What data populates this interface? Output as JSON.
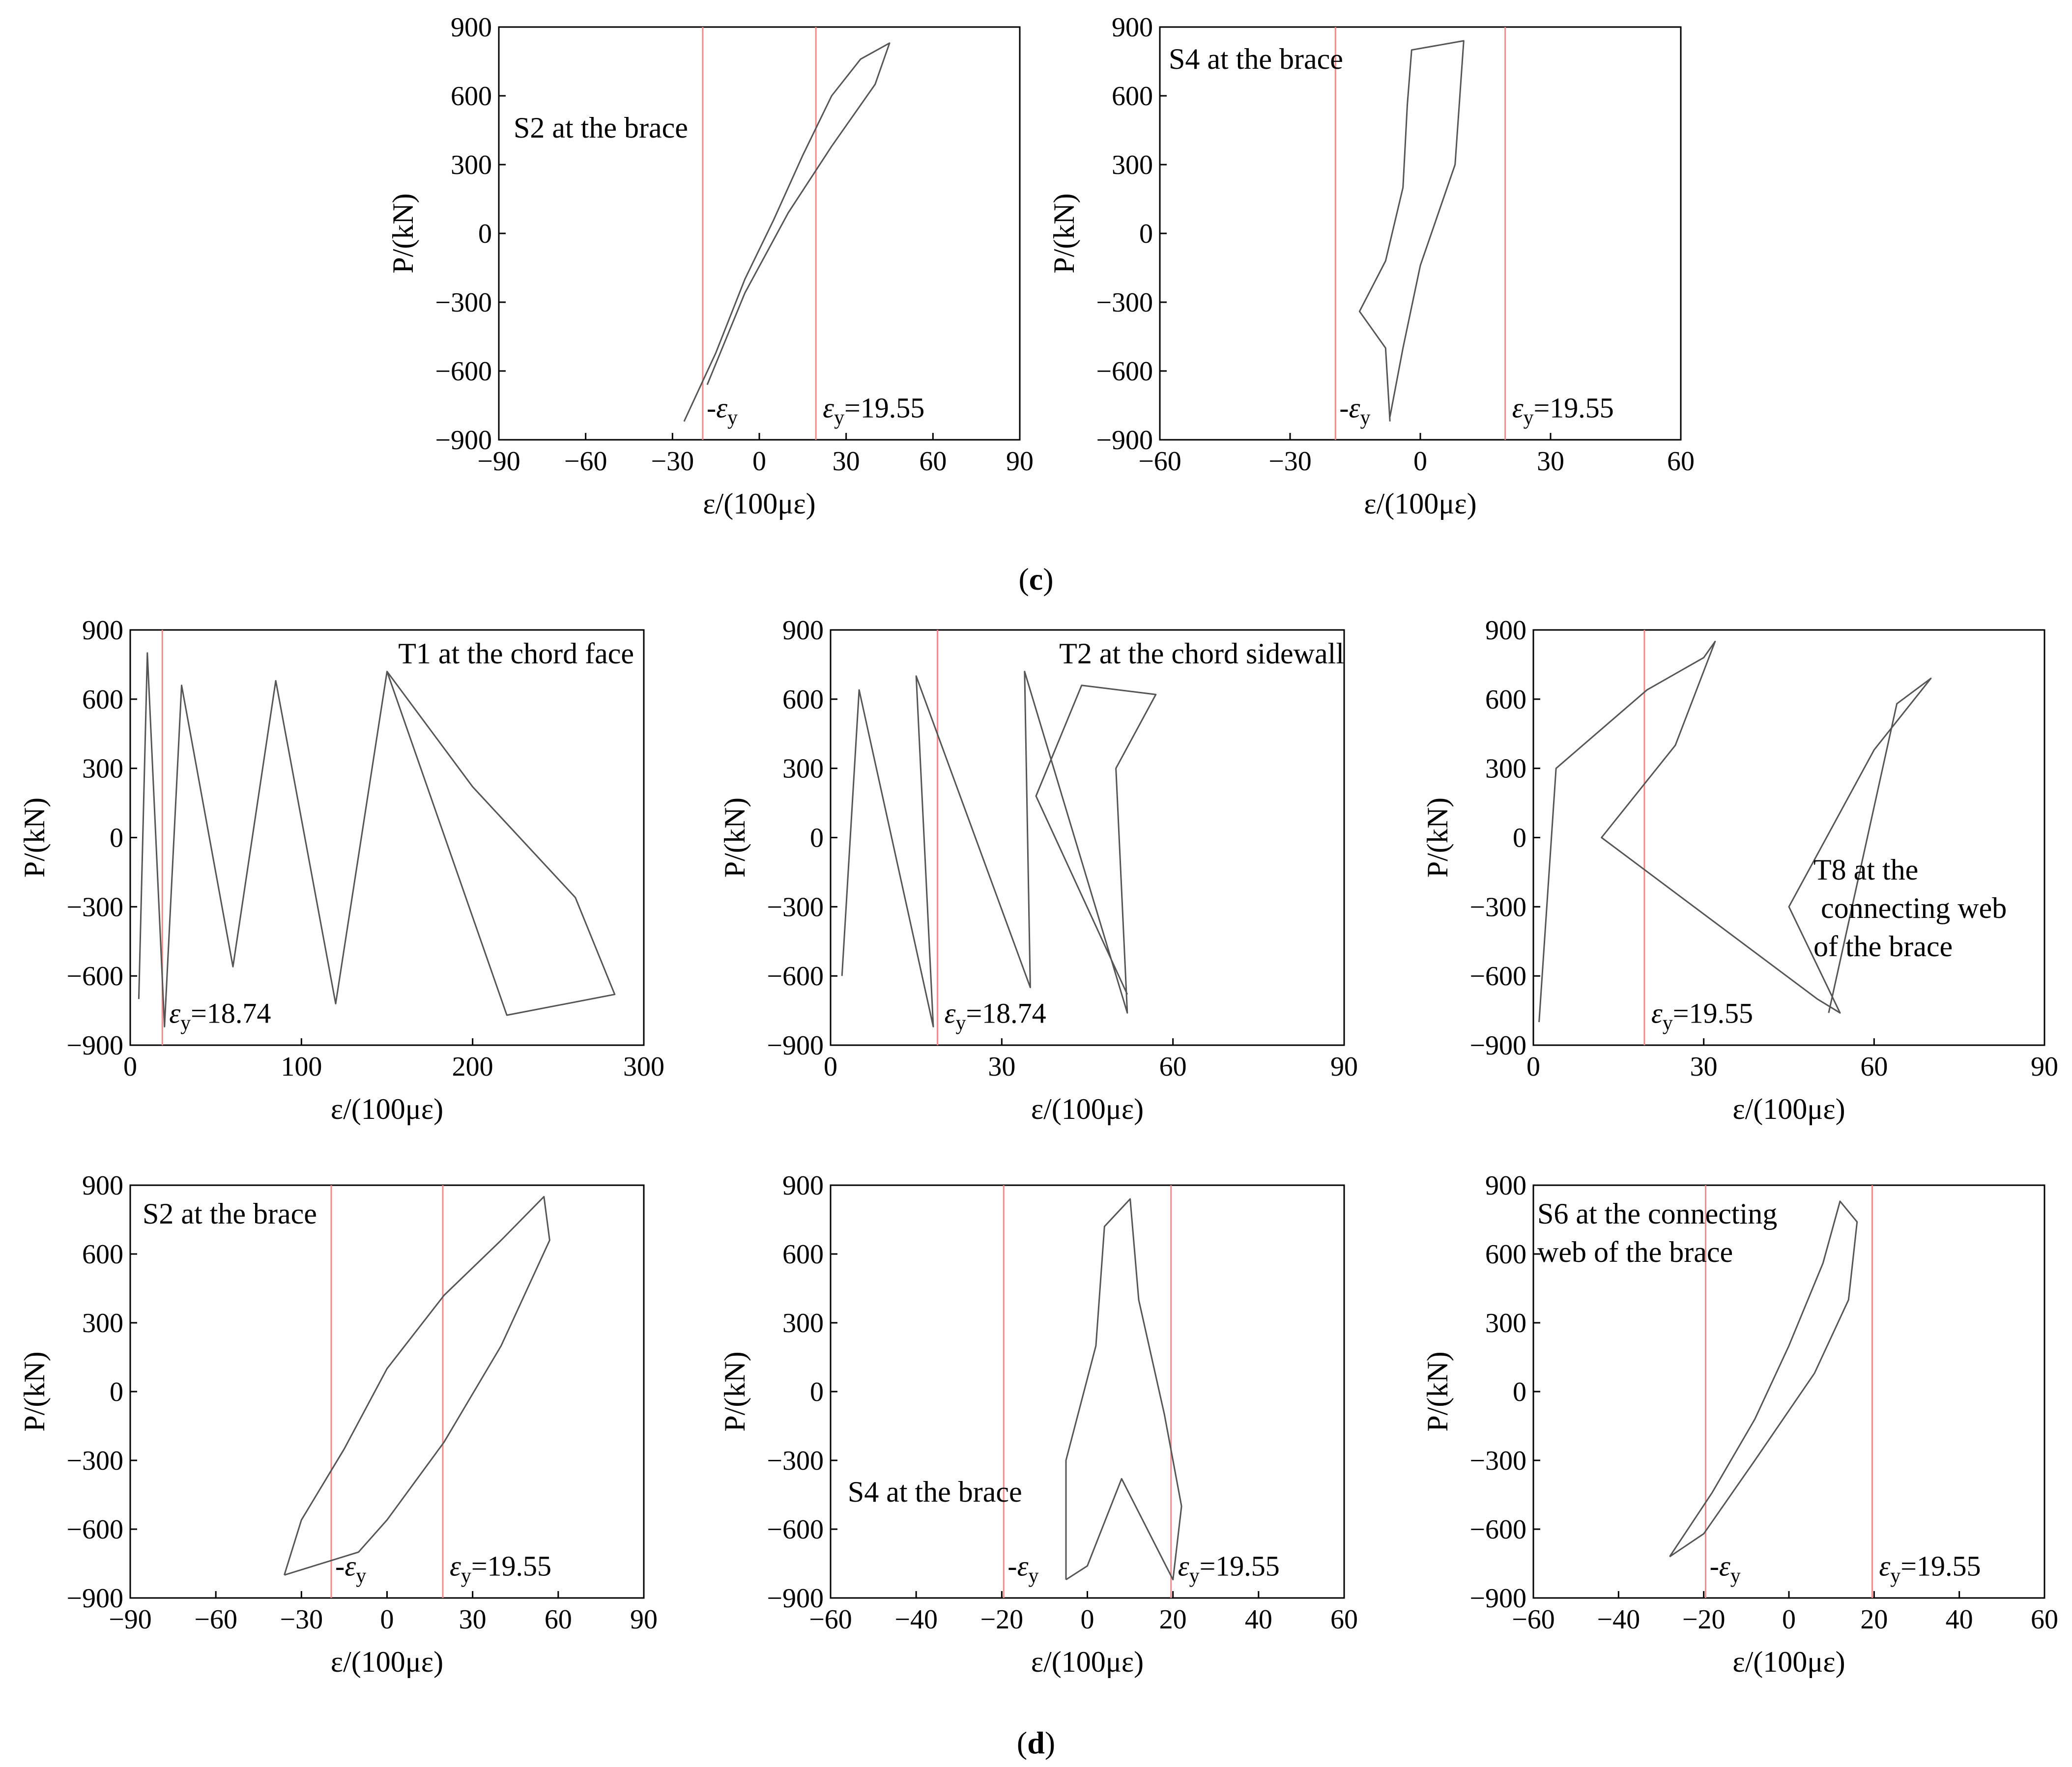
{
  "figure": {
    "sub_labels": {
      "c": {
        "open": "(",
        "letter": "c",
        "close": ")"
      },
      "d": {
        "open": "(",
        "letter": "d",
        "close": ")"
      }
    }
  },
  "colors": {
    "curve": "#555555",
    "yield_line": "#f28a8a",
    "axis": "#000000"
  },
  "chart_data": [
    {
      "id": "c1",
      "group": "c",
      "type": "line",
      "title": "S2 at the brace",
      "xlabel": "ε/(100με)",
      "ylabel": "P/(kN)",
      "xlim": [
        -90,
        90
      ],
      "ylim": [
        -900,
        900
      ],
      "xticks": [
        -90,
        -60,
        -30,
        0,
        30,
        60,
        90
      ],
      "yticks": [
        -900,
        -600,
        -300,
        0,
        300,
        600,
        900
      ],
      "yield_lines": [
        -19.55,
        19.55
      ],
      "annotations": [
        {
          "text": "-ε_y",
          "x": -19.55,
          "y": -760
        },
        {
          "text": "ε_y=19.55",
          "x": 19.55,
          "y": -760
        }
      ],
      "series": [
        {
          "name": "S2",
          "points": [
            [
              -26,
              -820
            ],
            [
              -15,
              -520
            ],
            [
              -5,
              -200
            ],
            [
              5,
              60
            ],
            [
              15,
              340
            ],
            [
              25,
              600
            ],
            [
              35,
              760
            ],
            [
              45,
              830
            ],
            [
              40,
              650
            ],
            [
              25,
              380
            ],
            [
              10,
              90
            ],
            [
              -5,
              -260
            ],
            [
              -18,
              -660
            ]
          ]
        }
      ]
    },
    {
      "id": "c2",
      "group": "c",
      "type": "line",
      "title": "S4 at the brace",
      "xlabel": "ε/(100με)",
      "ylabel": "P/(kN)",
      "xlim": [
        -60,
        60
      ],
      "ylim": [
        -900,
        900
      ],
      "xticks": [
        -60,
        -30,
        0,
        30,
        60
      ],
      "yticks": [
        -900,
        -600,
        -300,
        0,
        300,
        600,
        900
      ],
      "yield_lines": [
        -19.55,
        19.55
      ],
      "annotations": [
        {
          "text": "-ε_y",
          "x": -19.55,
          "y": -760
        },
        {
          "text": "ε_y=19.55",
          "x": 19.55,
          "y": -760
        }
      ],
      "series": [
        {
          "name": "S4",
          "points": [
            [
              -7,
              -820
            ],
            [
              -8,
              -500
            ],
            [
              -14,
              -340
            ],
            [
              -8,
              -120
            ],
            [
              -4,
              200
            ],
            [
              -3,
              560
            ],
            [
              -2,
              800
            ],
            [
              10,
              840
            ],
            [
              8,
              300
            ],
            [
              0,
              -140
            ],
            [
              -4,
              -500
            ],
            [
              -7,
              -800
            ]
          ]
        }
      ]
    },
    {
      "id": "d1",
      "group": "d",
      "type": "line",
      "title": "T1 at the chord face",
      "xlabel": "ε/(100με)",
      "ylabel": "P/(kN)",
      "xlim": [
        0,
        300
      ],
      "ylim": [
        -900,
        900
      ],
      "xticks": [
        0,
        100,
        200,
        300
      ],
      "yticks": [
        -900,
        -600,
        -300,
        0,
        300,
        600,
        900
      ],
      "yield_lines": [
        18.74
      ],
      "annotations": [
        {
          "text": "ε_y=18.74",
          "x": 18.74,
          "y": -760
        }
      ],
      "series": [
        {
          "name": "T1",
          "points": [
            [
              5,
              -700
            ],
            [
              10,
              800
            ],
            [
              20,
              -820
            ],
            [
              30,
              660
            ],
            [
              60,
              -560
            ],
            [
              85,
              680
            ],
            [
              120,
              -720
            ],
            [
              150,
              720
            ],
            [
              220,
              -770
            ],
            [
              283,
              -680
            ],
            [
              260,
              -260
            ],
            [
              200,
              220
            ],
            [
              150,
              720
            ]
          ]
        }
      ]
    },
    {
      "id": "d2",
      "group": "d",
      "type": "line",
      "title": "T2 at the chord sidewall",
      "xlabel": "ε/(100με)",
      "ylabel": "P/(kN)",
      "xlim": [
        0,
        90
      ],
      "ylim": [
        -900,
        900
      ],
      "xticks": [
        0,
        30,
        60,
        90
      ],
      "yticks": [
        -900,
        -600,
        -300,
        0,
        300,
        600,
        900
      ],
      "yield_lines": [
        18.74
      ],
      "annotations": [
        {
          "text": "ε_y=18.74",
          "x": 18.74,
          "y": -760
        }
      ],
      "series": [
        {
          "name": "T2",
          "points": [
            [
              2,
              -600
            ],
            [
              5,
              640
            ],
            [
              18,
              -820
            ],
            [
              15,
              700
            ],
            [
              35,
              -650
            ],
            [
              34,
              720
            ],
            [
              52,
              -760
            ],
            [
              50,
              300
            ],
            [
              57,
              620
            ],
            [
              44,
              660
            ],
            [
              36,
              180
            ],
            [
              52,
              -680
            ]
          ]
        }
      ]
    },
    {
      "id": "d3",
      "group": "d",
      "type": "line",
      "title": "T8 at the connecting web of the brace",
      "xlabel": "ε/(100με)",
      "ylabel": "P/(kN)",
      "xlim": [
        0,
        90
      ],
      "ylim": [
        -900,
        900
      ],
      "xticks": [
        0,
        30,
        60,
        90
      ],
      "yticks": [
        -900,
        -600,
        -300,
        0,
        300,
        600,
        900
      ],
      "yield_lines": [
        19.55
      ],
      "annotations": [
        {
          "text": "ε_y=19.55",
          "x": 19.55,
          "y": -760
        }
      ],
      "series": [
        {
          "name": "T8",
          "points": [
            [
              1,
              -800
            ],
            [
              4,
              300
            ],
            [
              20,
              640
            ],
            [
              30,
              780
            ],
            [
              32,
              850
            ],
            [
              25,
              400
            ],
            [
              12,
              0
            ],
            [
              50,
              -700
            ],
            [
              54,
              -760
            ],
            [
              45,
              -300
            ],
            [
              60,
              380
            ],
            [
              70,
              690
            ],
            [
              64,
              580
            ],
            [
              52,
              -760
            ]
          ]
        }
      ]
    },
    {
      "id": "d4",
      "group": "d",
      "type": "line",
      "title": "S2 at the brace",
      "xlabel": "ε/(100με)",
      "ylabel": "P/(kN)",
      "xlim": [
        -90,
        90
      ],
      "ylim": [
        -900,
        900
      ],
      "xticks": [
        -90,
        -60,
        -30,
        0,
        30,
        60,
        90
      ],
      "yticks": [
        -900,
        -600,
        -300,
        0,
        300,
        600,
        900
      ],
      "yield_lines": [
        -19.55,
        19.55
      ],
      "annotations": [
        {
          "text": "-ε_y",
          "x": -19.55,
          "y": -760
        },
        {
          "text": "ε_y=19.55",
          "x": 19.55,
          "y": -760
        }
      ],
      "series": [
        {
          "name": "S2",
          "points": [
            [
              -36,
              -800
            ],
            [
              -30,
              -560
            ],
            [
              -15,
              -250
            ],
            [
              0,
              100
            ],
            [
              20,
              420
            ],
            [
              40,
              660
            ],
            [
              55,
              850
            ],
            [
              57,
              660
            ],
            [
              40,
              200
            ],
            [
              20,
              -220
            ],
            [
              0,
              -560
            ],
            [
              -10,
              -700
            ],
            [
              -36,
              -800
            ]
          ]
        }
      ]
    },
    {
      "id": "d5",
      "group": "d",
      "type": "line",
      "title": "S4 at the brace",
      "xlabel": "ε/(100με)",
      "ylabel": "P/(kN)",
      "xlim": [
        -60,
        60
      ],
      "ylim": [
        -900,
        900
      ],
      "xticks": [
        -60,
        -40,
        -20,
        0,
        20,
        40,
        60
      ],
      "yticks": [
        -900,
        -600,
        -300,
        0,
        300,
        600,
        900
      ],
      "yield_lines": [
        -19.55,
        19.55
      ],
      "annotations": [
        {
          "text": "-ε_y",
          "x": -19.55,
          "y": -760
        },
        {
          "text": "ε_y=19.55",
          "x": 19.55,
          "y": -760
        },
        {
          "text": "S4 at the brace",
          "x": -56,
          "y": -480
        }
      ],
      "series": [
        {
          "name": "S4",
          "points": [
            [
              -5,
              -820
            ],
            [
              -5,
              -300
            ],
            [
              2,
              200
            ],
            [
              4,
              720
            ],
            [
              10,
              840
            ],
            [
              12,
              400
            ],
            [
              18,
              -100
            ],
            [
              22,
              -500
            ],
            [
              20,
              -820
            ],
            [
              8,
              -380
            ],
            [
              0,
              -760
            ],
            [
              -5,
              -820
            ]
          ]
        }
      ]
    },
    {
      "id": "d6",
      "group": "d",
      "type": "line",
      "title": "S6 at the connecting web of the brace",
      "xlabel": "ε/(100με)",
      "ylabel": "P/(kN)",
      "xlim": [
        -60,
        60
      ],
      "ylim": [
        -900,
        900
      ],
      "xticks": [
        -60,
        -40,
        -20,
        0,
        20,
        40,
        60
      ],
      "yticks": [
        -900,
        -600,
        -300,
        0,
        300,
        600,
        900
      ],
      "yield_lines": [
        -19.55,
        19.55
      ],
      "annotations": [
        {
          "text": "-ε_y",
          "x": -19.55,
          "y": -760
        },
        {
          "text": "ε_y=19.55",
          "x": 19.55,
          "y": -760
        }
      ],
      "series": [
        {
          "name": "S6",
          "points": [
            [
              -28,
              -720
            ],
            [
              -18,
              -440
            ],
            [
              -8,
              -120
            ],
            [
              0,
              200
            ],
            [
              8,
              560
            ],
            [
              12,
              830
            ],
            [
              16,
              740
            ],
            [
              14,
              400
            ],
            [
              6,
              80
            ],
            [
              -8,
              -300
            ],
            [
              -20,
              -620
            ],
            [
              -28,
              -720
            ]
          ]
        }
      ]
    }
  ]
}
